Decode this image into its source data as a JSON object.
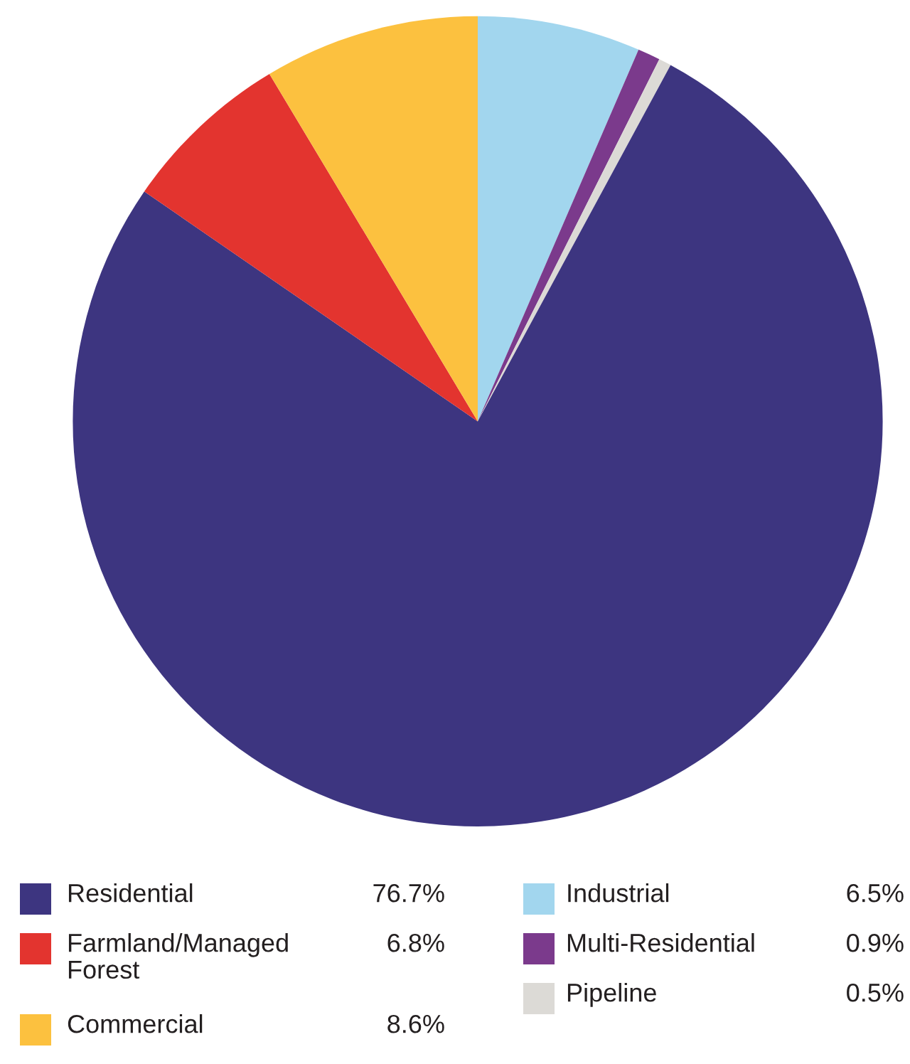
{
  "chart_data": {
    "type": "pie",
    "categories": [
      "Residential",
      "Farmland/Managed\nForest",
      "Commercial",
      "Industrial",
      "Multi-Residential",
      "Pipeline"
    ],
    "values": [
      76.7,
      6.8,
      8.6,
      6.5,
      0.9,
      0.5
    ],
    "value_labels": [
      "76.7%",
      "6.8%",
      "8.6%",
      "6.5%",
      "0.9%",
      "0.5%"
    ],
    "colors": [
      "#3d3580",
      "#e3342f",
      "#fcc13f",
      "#a2d6ee",
      "#7b3a8c",
      "#dcdad6"
    ],
    "legend": "bottom"
  }
}
